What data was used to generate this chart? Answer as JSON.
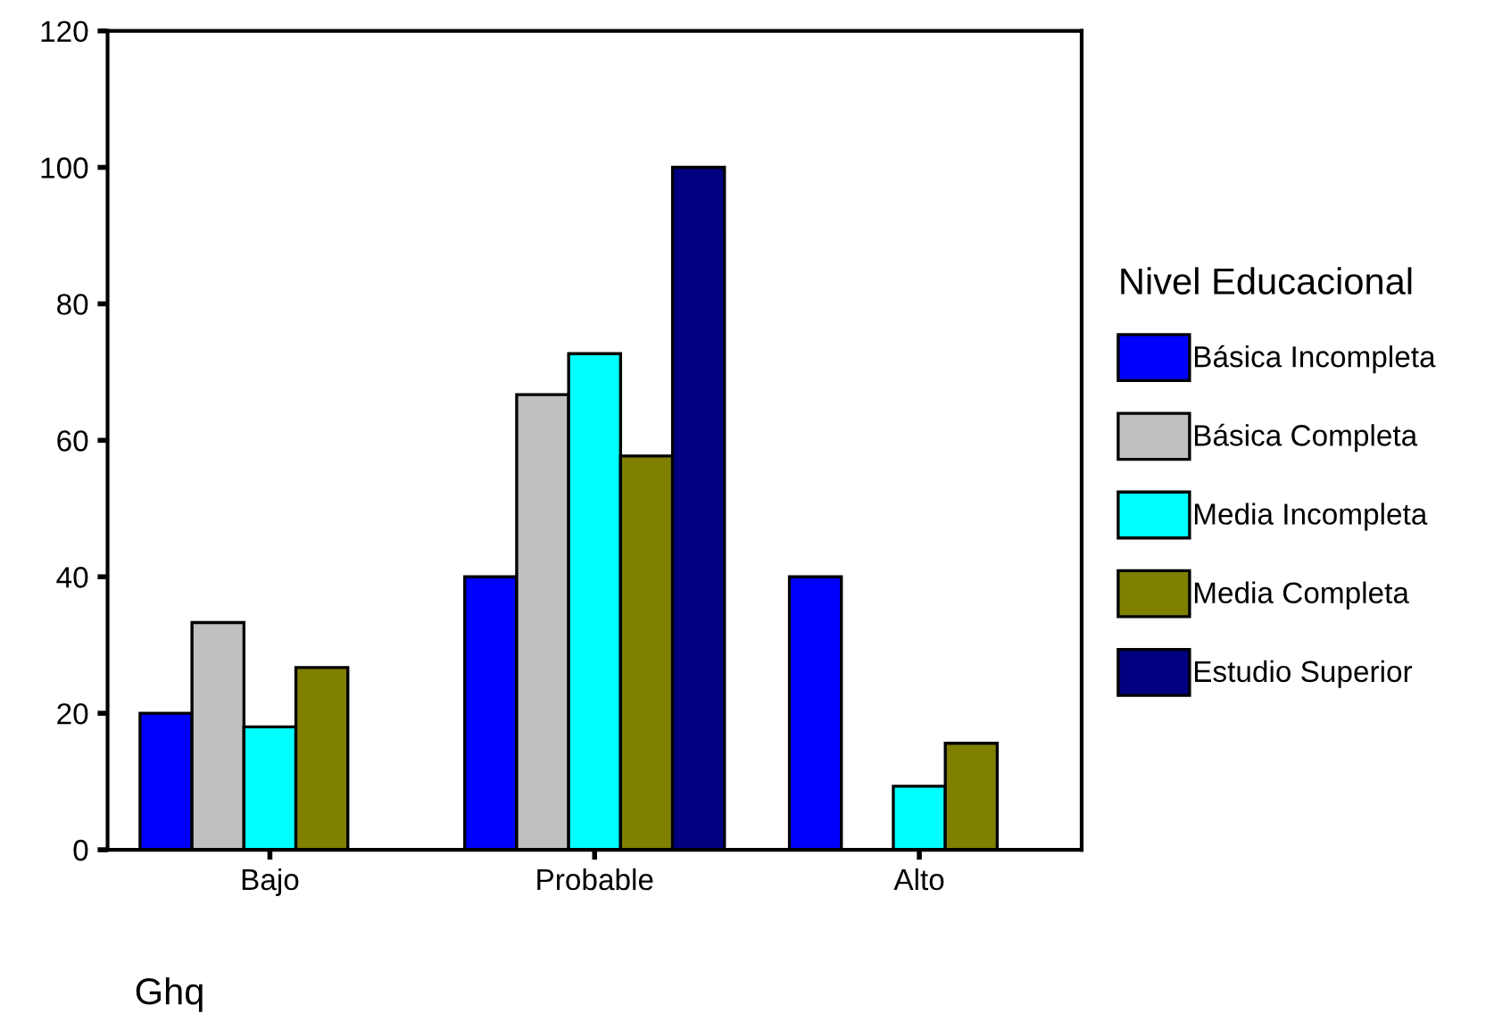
{
  "chart_data": {
    "type": "bar",
    "xlabel": "Ghq",
    "legend_title": "Nivel Educacional",
    "categories": [
      "Bajo",
      "Probable",
      "Alto"
    ],
    "series": [
      {
        "name": "Básica Incompleta",
        "color": "#0000ff",
        "values": [
          20,
          40,
          40
        ]
      },
      {
        "name": "Básica Completa",
        "color": "#c0c0c0",
        "values": [
          33.3,
          66.7,
          0
        ]
      },
      {
        "name": "Media Incompleta",
        "color": "#00ffff",
        "values": [
          18,
          72.7,
          9.3
        ]
      },
      {
        "name": "Media Completa",
        "color": "#808000",
        "values": [
          26.7,
          57.7,
          15.6
        ]
      },
      {
        "name": "Estudio Superior",
        "color": "#000080",
        "values": [
          0,
          100,
          0
        ]
      }
    ],
    "ylim": [
      0,
      120
    ],
    "yticks": [
      0,
      20,
      40,
      60,
      80,
      100,
      120
    ],
    "grid": false,
    "legend": "right"
  }
}
